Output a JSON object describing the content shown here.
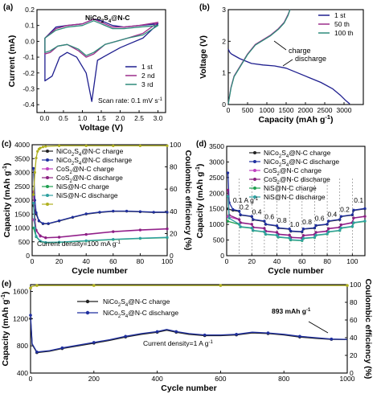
{
  "chart_data": [
    {
      "panel": "(a)",
      "type": "line",
      "title": "NiCo2S4@N-C",
      "xlabel": "Voltage (V)",
      "ylabel": "Current (mA)",
      "xlim": [
        -0.2,
        3.2
      ],
      "ylim": [
        -0.45,
        0.2
      ],
      "xticks": [
        "0.0",
        "0.5",
        "1.0",
        "1.5",
        "2.0",
        "2.5",
        "3.0"
      ],
      "yticks": [
        "-0.4",
        "-0.3",
        "-0.2",
        "-0.1",
        "0.0",
        "0.1",
        "0.2"
      ],
      "annotation": "Scan rate: 0.1 mV s-1",
      "legend_position": "bottom-right",
      "series": [
        {
          "name": "1 st",
          "color": "#1f1f8f",
          "x": [
            0.01,
            0.3,
            0.6,
            1.0,
            1.3,
            1.5,
            1.8,
            2.1,
            2.5,
            3.0,
            2.6,
            2.2,
            2.0,
            1.7,
            1.4,
            1.25,
            1.1,
            0.85,
            0.6,
            0.4,
            0.2,
            0.01
          ],
          "y": [
            0.02,
            0.09,
            0.1,
            0.11,
            0.14,
            0.13,
            0.1,
            0.09,
            0.1,
            0.11,
            0.02,
            -0.02,
            -0.04,
            -0.08,
            -0.12,
            -0.38,
            -0.2,
            -0.1,
            -0.07,
            -0.1,
            -0.22,
            -0.25
          ]
        },
        {
          "name": "2 nd",
          "color": "#9b2d8a",
          "x": [
            0.01,
            0.3,
            0.6,
            1.0,
            1.3,
            1.5,
            1.8,
            2.1,
            2.5,
            3.0,
            2.6,
            2.2,
            1.9,
            1.6,
            1.3,
            1.1,
            0.9,
            0.6,
            0.35,
            0.15,
            0.01
          ],
          "y": [
            0.02,
            0.08,
            0.1,
            0.11,
            0.14,
            0.12,
            0.09,
            0.09,
            0.1,
            0.12,
            0.05,
            0.02,
            0.0,
            -0.02,
            -0.08,
            -0.1,
            -0.06,
            -0.02,
            -0.03,
            -0.07,
            -0.08
          ]
        },
        {
          "name": "3 rd",
          "color": "#2e8b7a",
          "x": [
            0.01,
            0.3,
            0.6,
            1.0,
            1.3,
            1.5,
            1.8,
            2.1,
            2.5,
            3.0,
            2.6,
            2.2,
            1.9,
            1.6,
            1.3,
            1.1,
            0.9,
            0.6,
            0.35,
            0.15,
            0.01
          ],
          "y": [
            0.02,
            0.07,
            0.09,
            0.1,
            0.13,
            0.11,
            0.08,
            0.08,
            0.09,
            0.1,
            0.04,
            0.02,
            0.0,
            -0.02,
            -0.07,
            -0.09,
            -0.05,
            -0.02,
            -0.03,
            -0.06,
            -0.07
          ]
        }
      ]
    },
    {
      "panel": "(b)",
      "type": "line",
      "xlabel": "Capacity (mAh g-1)",
      "ylabel": "Voltage (V)",
      "xlim": [
        0,
        3500
      ],
      "ylim": [
        0,
        3
      ],
      "xticks": [
        "0",
        "500",
        "1000",
        "1500",
        "2000",
        "2500",
        "3000"
      ],
      "yticks": [
        "0",
        "1",
        "2",
        "3"
      ],
      "annotations": [
        "charge",
        "discharge"
      ],
      "legend_position": "top-right",
      "series": [
        {
          "name": "1 st",
          "color": "#1f1f8f",
          "x": [
            0,
            40,
            80,
            150,
            300,
            600,
            900,
            1200,
            1500,
            1800,
            2100,
            2400,
            2700,
            2900,
            3050,
            3150
          ],
          "y": [
            1.75,
            1.65,
            1.6,
            1.55,
            1.45,
            1.3,
            1.25,
            1.22,
            1.15,
            1.0,
            0.85,
            0.7,
            0.5,
            0.3,
            0.12,
            0.02
          ]
        },
        {
          "name": "50 th",
          "color": "#9b2d8a",
          "x": [
            0,
            30,
            70,
            150,
            300,
            500,
            700,
            900,
            1100,
            1300,
            1450,
            1550,
            1600
          ],
          "y": [
            0.02,
            0.25,
            0.55,
            0.9,
            1.2,
            1.6,
            1.9,
            2.05,
            2.2,
            2.4,
            2.6,
            2.85,
            3.0
          ]
        },
        {
          "name": "100 th",
          "color": "#2e8b7a",
          "x": [
            0,
            30,
            70,
            150,
            300,
            500,
            700,
            900,
            1100,
            1300,
            1450,
            1550,
            1600
          ],
          "y": [
            0.02,
            0.22,
            0.52,
            0.88,
            1.18,
            1.58,
            1.88,
            2.03,
            2.18,
            2.38,
            2.58,
            2.82,
            3.0
          ]
        }
      ]
    },
    {
      "panel": "(c)",
      "type": "line",
      "xlabel": "Cycle number",
      "ylabel": "Capacity (mAh g-1)",
      "y2label": "Coulombic efficiency (%)",
      "xlim": [
        0,
        100
      ],
      "ylim": [
        0,
        4000
      ],
      "y2lim": [
        0,
        100
      ],
      "xticks": [
        "0",
        "20",
        "40",
        "60",
        "80",
        "100"
      ],
      "yticks": [
        "0",
        "500",
        "1000",
        "1500",
        "2000",
        "2500",
        "3000",
        "3500",
        "4000"
      ],
      "y2ticks": [
        "0",
        "20",
        "40",
        "60",
        "80",
        "100"
      ],
      "annotation": "Current density=100 mA g-1",
      "legend_position": "top-right",
      "series": [
        {
          "name": "NiCo2S4@N-C charge",
          "color": "#222222",
          "x": [
            1,
            3,
            5,
            8,
            12,
            20,
            30,
            40,
            50,
            60,
            70,
            80,
            90,
            100
          ],
          "y": [
            1800,
            1500,
            1250,
            1150,
            1150,
            1250,
            1380,
            1500,
            1560,
            1600,
            1600,
            1580,
            1560,
            1560
          ]
        },
        {
          "name": "NiCo2S4@N-C discharge",
          "color": "#1f2f9f",
          "x": [
            1,
            2,
            3,
            5,
            8,
            12,
            20,
            30,
            40,
            50,
            60,
            70,
            80,
            90,
            100
          ],
          "y": [
            3150,
            2000,
            1550,
            1260,
            1160,
            1160,
            1260,
            1390,
            1510,
            1570,
            1610,
            1610,
            1590,
            1570,
            1570
          ]
        },
        {
          "name": "CoS2@N-C charge",
          "color": "#c040c0",
          "x": [
            1,
            3,
            6,
            10,
            20,
            40,
            60,
            80,
            100
          ],
          "y": [
            1300,
            900,
            700,
            640,
            660,
            760,
            860,
            920,
            960
          ]
        },
        {
          "name": "CoS2@N-C discharge",
          "color": "#8a2080",
          "x": [
            1,
            2,
            3,
            6,
            10,
            20,
            40,
            60,
            80,
            100
          ],
          "y": [
            2300,
            1300,
            920,
            720,
            650,
            670,
            770,
            870,
            930,
            970
          ]
        },
        {
          "name": "NiS@N-C charge",
          "color": "#1f9f4f",
          "x": [
            1,
            3,
            6,
            10,
            20,
            40,
            60,
            80,
            100
          ],
          "y": [
            1000,
            680,
            520,
            470,
            480,
            530,
            580,
            620,
            650
          ]
        },
        {
          "name": "NiS@N-C discharge",
          "color": "#2ea0a0",
          "x": [
            1,
            2,
            3,
            6,
            10,
            20,
            40,
            60,
            80,
            100
          ],
          "y": [
            1900,
            1000,
            700,
            530,
            480,
            490,
            540,
            590,
            630,
            660
          ]
        },
        {
          "name": "Coulombic efficiency",
          "axis": "y2",
          "color": "#b0b020",
          "x": [
            1,
            2,
            3,
            4,
            5,
            6,
            8,
            10,
            20,
            40,
            60,
            80,
            100
          ],
          "y": [
            55,
            75,
            88,
            94,
            96,
            97,
            98,
            98.5,
            99,
            99,
            99,
            99,
            99
          ]
        }
      ]
    },
    {
      "panel": "(d)",
      "type": "line",
      "xlabel": "Cycle number",
      "ylabel": "Capacity (mAh g-1)",
      "xlim": [
        0,
        110
      ],
      "ylim": [
        0,
        3500
      ],
      "xticks": [
        "0",
        "20",
        "40",
        "60",
        "80",
        "100"
      ],
      "yticks": [
        "0",
        "500",
        "1000",
        "1500",
        "2000",
        "2500",
        "3000",
        "3500"
      ],
      "rate_labels": [
        "0.1 A g-1",
        "0.2",
        "0.4",
        "0.6",
        "0.8",
        "1.0",
        "0.8",
        "0.6",
        "0.4",
        "0.2",
        "0.1"
      ],
      "legend_position": "top-right",
      "series": [
        {
          "name": "NiCo2S4@N-C charge",
          "color": "#222222",
          "x": [
            1,
            5,
            10,
            11,
            20,
            21,
            30,
            31,
            40,
            41,
            50,
            51,
            60,
            61,
            70,
            71,
            80,
            81,
            90,
            91,
            100,
            101,
            110
          ],
          "y": [
            1500,
            1450,
            1420,
            1300,
            1250,
            1150,
            1100,
            1000,
            950,
            880,
            850,
            780,
            760,
            850,
            880,
            960,
            1000,
            1100,
            1150,
            1250,
            1300,
            1450,
            1500
          ]
        },
        {
          "name": "NiCo2S4@N-C discharge",
          "color": "#1f2f9f",
          "x": [
            1,
            2,
            5,
            10,
            11,
            20,
            21,
            30,
            31,
            40,
            41,
            50,
            51,
            60,
            61,
            70,
            71,
            80,
            81,
            90,
            91,
            100,
            101,
            110
          ],
          "y": [
            2650,
            1700,
            1480,
            1430,
            1310,
            1260,
            1160,
            1110,
            1010,
            960,
            890,
            860,
            790,
            770,
            860,
            890,
            970,
            1010,
            1110,
            1160,
            1260,
            1310,
            1460,
            1510
          ]
        },
        {
          "name": "CoS2@N-C charge",
          "color": "#c040c0",
          "x": [
            1,
            10,
            11,
            20,
            21,
            30,
            31,
            40,
            41,
            50,
            51,
            60,
            61,
            70,
            71,
            80,
            81,
            90,
            91,
            100,
            101,
            110
          ],
          "y": [
            1250,
            1150,
            1050,
            1000,
            900,
            870,
            780,
            740,
            680,
            650,
            580,
            560,
            640,
            670,
            740,
            780,
            860,
            900,
            980,
            1050,
            1200,
            1250
          ]
        },
        {
          "name": "CoS2@N-C discharge",
          "color": "#8a2080",
          "x": [
            1,
            2,
            10,
            11,
            20,
            21,
            30,
            31,
            40,
            41,
            50,
            51,
            60,
            61,
            70,
            71,
            80,
            81,
            90,
            91,
            100,
            101,
            110
          ],
          "y": [
            2100,
            1300,
            1160,
            1060,
            1010,
            910,
            880,
            790,
            750,
            690,
            660,
            590,
            570,
            650,
            680,
            750,
            790,
            870,
            910,
            990,
            1060,
            1210,
            1260
          ]
        },
        {
          "name": "NiS@N-C charge",
          "color": "#1f9f4f",
          "x": [
            1,
            10,
            11,
            20,
            21,
            30,
            31,
            40,
            41,
            50,
            51,
            60,
            61,
            70,
            71,
            80,
            81,
            90,
            91,
            100,
            101,
            110
          ],
          "y": [
            1100,
            1000,
            920,
            880,
            800,
            760,
            680,
            650,
            590,
            560,
            500,
            480,
            550,
            580,
            650,
            690,
            760,
            800,
            880,
            930,
            1050,
            1100
          ]
        },
        {
          "name": "NiS@N-C discharge",
          "color": "#2ea0a0",
          "x": [
            1,
            2,
            10,
            11,
            20,
            21,
            30,
            31,
            40,
            41,
            50,
            51,
            60,
            61,
            70,
            71,
            80,
            81,
            90,
            91,
            100,
            101,
            110
          ],
          "y": [
            1900,
            1200,
            1010,
            930,
            890,
            810,
            770,
            690,
            660,
            600,
            570,
            510,
            490,
            560,
            590,
            660,
            700,
            770,
            810,
            890,
            940,
            1060,
            1110
          ]
        }
      ]
    },
    {
      "panel": "(e)",
      "type": "line",
      "xlabel": "Cycle number",
      "ylabel": "Capacity (mAh g-1)",
      "y2label": "Coulombic efficiency (%)",
      "xlim": [
        0,
        1000
      ],
      "ylim": [
        400,
        1700
      ],
      "y2lim": [
        0,
        100
      ],
      "xticks": [
        "0",
        "200",
        "400",
        "600",
        "800",
        "1000"
      ],
      "yticks": [
        "400",
        "800",
        "1200",
        "1600"
      ],
      "y2ticks": [
        "0",
        "20",
        "40",
        "60",
        "80",
        "100"
      ],
      "annotations": [
        "Current density=1 A g-1",
        "893 mAh g-1"
      ],
      "legend_position": "top-left",
      "series": [
        {
          "name": "NiCo2S4@N-C charge",
          "color": "#222222",
          "x": [
            0,
            5,
            20,
            60,
            100,
            150,
            200,
            250,
            300,
            350,
            400,
            430,
            460,
            500,
            550,
            600,
            650,
            700,
            750,
            800,
            850,
            900,
            950,
            1000
          ],
          "y": [
            1200,
            820,
            700,
            720,
            760,
            800,
            840,
            880,
            930,
            970,
            1000,
            1030,
            1000,
            970,
            950,
            950,
            960,
            990,
            980,
            960,
            930,
            910,
            895,
            893
          ]
        },
        {
          "name": "NiCo2S4@N-C discharge",
          "color": "#1f2f9f",
          "x": [
            0,
            5,
            20,
            60,
            100,
            150,
            200,
            250,
            300,
            350,
            400,
            430,
            460,
            500,
            550,
            600,
            650,
            700,
            750,
            800,
            850,
            900,
            950,
            1000
          ],
          "y": [
            1250,
            830,
            710,
            730,
            770,
            810,
            850,
            890,
            940,
            980,
            1010,
            1040,
            1010,
            980,
            960,
            960,
            970,
            1000,
            990,
            970,
            940,
            920,
            900,
            895
          ]
        },
        {
          "name": "Coulombic efficiency",
          "axis": "y2",
          "color": "#b0b020",
          "x": [
            0,
            5,
            20,
            100,
            200,
            400,
            600,
            800,
            1000
          ],
          "y": [
            96,
            98,
            99,
            99,
            99,
            99,
            99,
            99,
            99
          ]
        }
      ]
    }
  ]
}
